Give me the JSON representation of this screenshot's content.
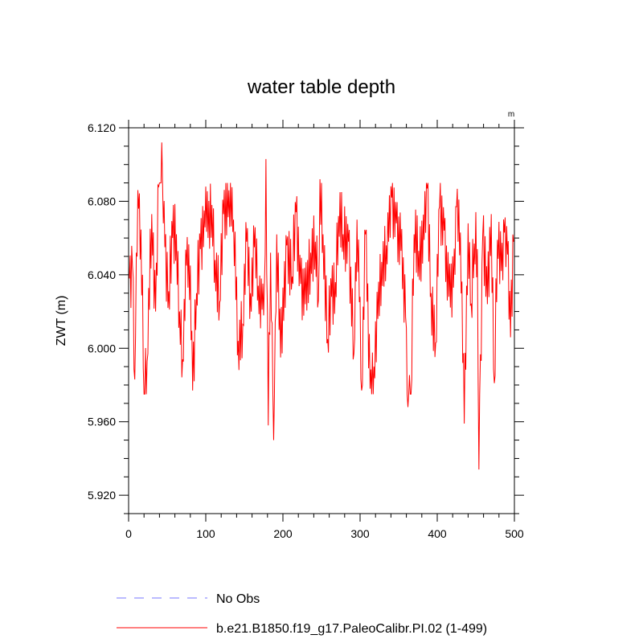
{
  "chart_data": {
    "type": "line",
    "title": "water table depth",
    "units_label": "m",
    "xlabel": "",
    "ylabel": "ZWT  (m)",
    "xlim": [
      0,
      500
    ],
    "ylim": [
      5.91,
      6.12
    ],
    "x_ticks": [
      0,
      100,
      200,
      300,
      400,
      500
    ],
    "x_tick_labels": [
      "0",
      "100",
      "200",
      "300",
      "400",
      "500"
    ],
    "y_ticks": [
      5.92,
      5.96,
      6.0,
      6.04,
      6.08,
      6.12
    ],
    "y_tick_labels": [
      "5.920",
      "5.960",
      "6.000",
      "6.040",
      "6.080",
      "6.120"
    ],
    "grid": false,
    "legend_position": "bottom",
    "series": [
      {
        "name": "No Obs",
        "style": "dashed",
        "color": "#7777ff",
        "x": [],
        "values": []
      },
      {
        "name": "b.e21.B1850.f19_g17.PaleoCalibr.PI.02 (1-499)",
        "style": "solid",
        "color": "#ff0000",
        "x_start": 1,
        "x_end": 499,
        "keypoints": [
          [
            1,
            6.038
          ],
          [
            5,
            6.045
          ],
          [
            8,
            5.983
          ],
          [
            10,
            6.052
          ],
          [
            13,
            6.076
          ],
          [
            18,
            6.04
          ],
          [
            20,
            5.975
          ],
          [
            24,
            5.993
          ],
          [
            30,
            6.073
          ],
          [
            35,
            6.02
          ],
          [
            39,
            6.088
          ],
          [
            43,
            6.112
          ],
          [
            47,
            6.055
          ],
          [
            52,
            6.031
          ],
          [
            57,
            6.06
          ],
          [
            62,
            6.062
          ],
          [
            66,
            6.02
          ],
          [
            70,
            5.994
          ],
          [
            75,
            6.045
          ],
          [
            80,
            6.045
          ],
          [
            83,
            5.977
          ],
          [
            88,
            6.03
          ],
          [
            93,
            6.054
          ],
          [
            98,
            6.075
          ],
          [
            100,
            6.088
          ],
          [
            103,
            6.06
          ],
          [
            108,
            6.078
          ],
          [
            112,
            6.048
          ],
          [
            118,
            6.025
          ],
          [
            123,
            6.073
          ],
          [
            130,
            6.086
          ],
          [
            136,
            6.07
          ],
          [
            142,
            6.004
          ],
          [
            148,
            6.013
          ],
          [
            153,
            6.058
          ],
          [
            158,
            6.03
          ],
          [
            163,
            6.055
          ],
          [
            168,
            6.034
          ],
          [
            173,
            6.021
          ],
          [
            176,
            6.035
          ],
          [
            178,
            6.103
          ],
          [
            181,
            5.958
          ],
          [
            184,
            6.052
          ],
          [
            188,
            5.95
          ],
          [
            192,
            6.062
          ],
          [
            197,
            5.995
          ],
          [
            205,
            6.056
          ],
          [
            212,
            6.039
          ],
          [
            217,
            6.074
          ],
          [
            223,
            6.035
          ],
          [
            229,
            6.024
          ],
          [
            236,
            6.052
          ],
          [
            242,
            6.058
          ],
          [
            246,
            6.026
          ],
          [
            248,
            6.092
          ],
          [
            252,
            6.062
          ],
          [
            258,
            6.005
          ],
          [
            263,
            6.028
          ],
          [
            268,
            6.036
          ],
          [
            272,
            6.072
          ],
          [
            278,
            6.062
          ],
          [
            285,
            6.058
          ],
          [
            292,
            5.997
          ],
          [
            296,
            6.07
          ],
          [
            300,
            6.028
          ],
          [
            302,
            5.977
          ],
          [
            307,
            6.062
          ],
          [
            313,
            5.978
          ],
          [
            318,
            5.99
          ],
          [
            323,
            6.016
          ],
          [
            328,
            6.047
          ],
          [
            334,
            6.056
          ],
          [
            337,
            6.058
          ],
          [
            341,
            6.082
          ],
          [
            347,
            6.068
          ],
          [
            353,
            6.053
          ],
          [
            359,
            6.017
          ],
          [
            362,
            5.968
          ],
          [
            366,
            5.975
          ],
          [
            370,
            6.062
          ],
          [
            376,
            6.053
          ],
          [
            383,
            6.059
          ],
          [
            387,
            6.087
          ],
          [
            392,
            6.03
          ],
          [
            398,
            6.003
          ],
          [
            403,
            6.077
          ],
          [
            409,
            6.064
          ],
          [
            415,
            6.028
          ],
          [
            421,
            6.033
          ],
          [
            425,
            6.077
          ],
          [
            430,
            6.063
          ],
          [
            435,
            5.959
          ],
          [
            440,
            6.068
          ],
          [
            444,
            6.024
          ],
          [
            448,
            6.057
          ],
          [
            452,
            6.054
          ],
          [
            454,
            5.934
          ],
          [
            459,
            6.062
          ],
          [
            465,
            6.024
          ],
          [
            470,
            6.073
          ],
          [
            474,
            5.981
          ],
          [
            478,
            6.059
          ],
          [
            483,
            6.042
          ],
          [
            487,
            6.063
          ],
          [
            491,
            6.051
          ],
          [
            495,
            6.006
          ],
          [
            499,
            6.058
          ]
        ]
      }
    ]
  }
}
